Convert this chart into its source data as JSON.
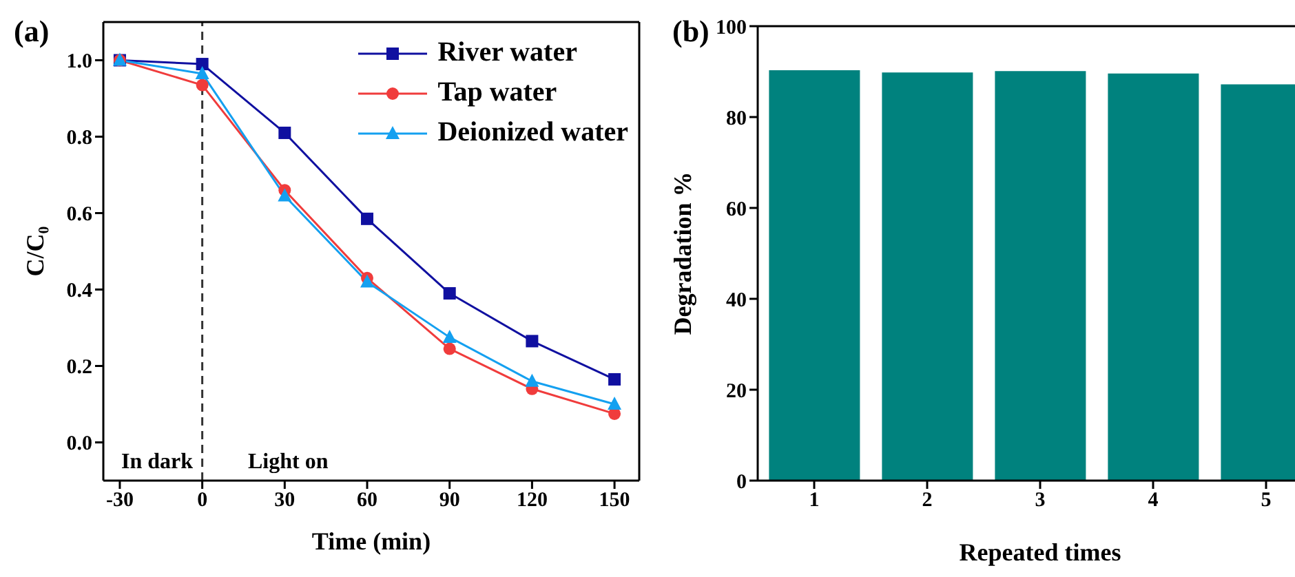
{
  "chart_data": [
    {
      "type": "line",
      "title": "(a)",
      "xlabel": "Time (min)",
      "ylabel": "C/C₀",
      "x": [
        -30,
        0,
        30,
        60,
        90,
        120,
        150
      ],
      "series": [
        {
          "name": "River water",
          "color": "#1010a0",
          "marker": "square",
          "values": [
            1.0,
            0.99,
            0.81,
            0.585,
            0.39,
            0.265,
            0.165
          ]
        },
        {
          "name": "Tap water",
          "color": "#f03c3c",
          "marker": "circle",
          "values": [
            1.0,
            0.935,
            0.66,
            0.43,
            0.245,
            0.14,
            0.075
          ]
        },
        {
          "name": "Deionized water",
          "color": "#14a0f0",
          "marker": "triangle",
          "values": [
            1.0,
            0.965,
            0.645,
            0.42,
            0.275,
            0.16,
            0.1
          ]
        }
      ],
      "xlim": [
        -36,
        159
      ],
      "xticks": [
        -30,
        0,
        30,
        60,
        90,
        120,
        150
      ],
      "ylim": [
        -0.1,
        1.1
      ],
      "yticks": [
        {
          "value": 0,
          "label": "0.0"
        },
        0.2,
        0.4,
        0.6,
        0.8,
        {
          "value": 1,
          "label": "1.0"
        }
      ],
      "ref_lines": [
        {
          "axis": "x",
          "value": 0,
          "color": "#333333",
          "line_style": "dashed"
        }
      ],
      "annotations": [
        "In dark",
        "Light on"
      ],
      "legend": "top right",
      "line_style": "solid"
    },
    {
      "type": "bar",
      "title": "(b)",
      "xlabel": "Repeated times",
      "ylabel": "Degradation %",
      "categories": [
        "1",
        "2",
        "3",
        "4",
        "5"
      ],
      "values": [
        90.3,
        89.8,
        90.1,
        89.6,
        87.2
      ],
      "color": "#00827e",
      "ylim": [
        0,
        100
      ],
      "yticks": [
        0,
        20,
        40,
        60,
        80,
        100
      ]
    }
  ]
}
